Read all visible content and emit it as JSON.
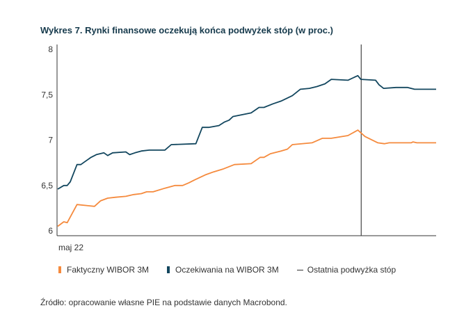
{
  "chart_data": {
    "type": "line",
    "title": "Wykres 7. Rynki finansowe oczekują końca podwyżek stóp (w proc.)",
    "xlabel": "",
    "ylabel": "",
    "x_tick_labels": [
      "maj 22"
    ],
    "ylim": [
      6,
      8
    ],
    "xlim": [
      0,
      100
    ],
    "y_ticks": [
      6,
      6.5,
      7,
      7.5,
      8
    ],
    "y_tick_labels": [
      "6",
      "6,5",
      "7",
      "7,5",
      "8"
    ],
    "grid": false,
    "legend_position": "bottom",
    "series": [
      {
        "name": "Faktyczny WIBOR 3M",
        "color": "#f58a3d",
        "x": [
          0,
          1.6,
          2.5,
          5.1,
          9.7,
          11.3,
          13.2,
          15.3,
          18.0,
          20.1,
          22.1,
          23.5,
          25.2,
          28.3,
          31.0,
          33.0,
          34.7,
          36.1,
          39.2,
          41.2,
          43.6,
          46.7,
          51.1,
          53.5,
          54.5,
          56.2,
          59.0,
          60.7,
          62.0,
          67.2,
          69.9,
          72.3,
          76.7,
          79.3,
          81.2,
          84.6,
          86.3,
          87.6,
          93.4,
          93.9,
          94.9,
          100
        ],
        "y": [
          6.05,
          6.1,
          6.09,
          6.29,
          6.27,
          6.33,
          6.36,
          6.37,
          6.38,
          6.4,
          6.41,
          6.43,
          6.43,
          6.47,
          6.5,
          6.5,
          6.53,
          6.56,
          6.62,
          6.65,
          6.68,
          6.73,
          6.74,
          6.81,
          6.81,
          6.85,
          6.88,
          6.9,
          6.95,
          6.97,
          7.02,
          7.02,
          7.05,
          7.11,
          7.04,
          6.97,
          6.96,
          6.97,
          6.97,
          6.98,
          6.97,
          6.97
        ]
      },
      {
        "name": "Oczekiwania na WIBOR 3M",
        "color": "#12465e",
        "x": [
          0,
          1.6,
          2.5,
          3.3,
          5.1,
          6.1,
          7.1,
          8.8,
          10.2,
          12.2,
          13.2,
          14.5,
          18.0,
          19.0,
          20.4,
          22.1,
          24.2,
          28.3,
          30.0,
          36.5,
          38.2,
          39.9,
          42.6,
          44.1,
          45.3,
          46.3,
          51.1,
          53.2,
          54.5,
          56.9,
          59.0,
          62.0,
          64.1,
          66.5,
          68.5,
          70.6,
          72.3,
          76.7,
          79.3,
          80.1,
          84.0,
          84.9,
          86.1,
          89.4,
          92.4,
          94.3,
          100
        ],
        "y": [
          6.46,
          6.5,
          6.5,
          6.54,
          6.73,
          6.73,
          6.76,
          6.81,
          6.84,
          6.86,
          6.83,
          6.86,
          6.87,
          6.84,
          6.86,
          6.88,
          6.89,
          6.89,
          6.95,
          6.96,
          7.14,
          7.14,
          7.16,
          7.2,
          7.22,
          7.26,
          7.3,
          7.36,
          7.36,
          7.4,
          7.43,
          7.49,
          7.56,
          7.57,
          7.59,
          7.62,
          7.67,
          7.66,
          7.71,
          7.67,
          7.66,
          7.61,
          7.57,
          7.58,
          7.58,
          7.56,
          7.56
        ]
      }
    ],
    "annotations": [
      {
        "name": "Ostatnia podwyżka stóp",
        "type": "vertical-line",
        "x": 80.2,
        "color": "#444444"
      }
    ]
  },
  "legend": {
    "items": [
      "Faktyczny WIBOR 3M",
      "Oczekiwania na WIBOR 3M",
      "Ostatnia podwyżka stóp"
    ]
  },
  "source": "Źródło: opracowanie własne PIE na podstawie danych Macrobond."
}
